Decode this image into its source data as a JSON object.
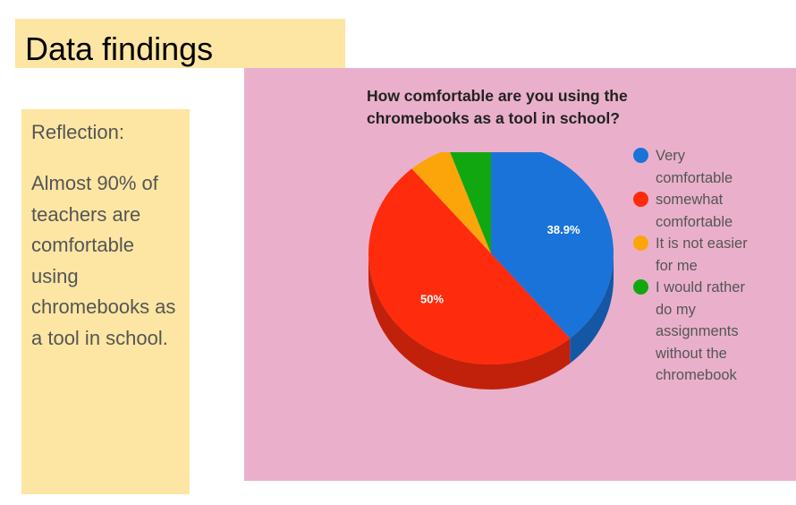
{
  "page": {
    "title": "Data findings",
    "reflection_heading": "Reflection:",
    "reflection_body": "Almost 90% of teachers are comfortable using chromebooks as a tool in school."
  },
  "chart_data": {
    "type": "pie",
    "title": "How comfortable are you using the chromebooks as a tool in school?",
    "legend_position": "right",
    "three_d": true,
    "slices": [
      {
        "label": "Very comfortable",
        "value": 38.9,
        "display": "38.9%",
        "color": "#1a73d9"
      },
      {
        "label": "somewhat comfortable",
        "value": 50,
        "display": "50%",
        "color": "#fe2b0d"
      },
      {
        "label": "It is not easier for me",
        "value": 5.6,
        "display": "",
        "color": "#fca50b"
      },
      {
        "label": "I would rather do my assignments without the chromebook",
        "value": 5.6,
        "display": "",
        "color": "#11a711"
      }
    ]
  }
}
